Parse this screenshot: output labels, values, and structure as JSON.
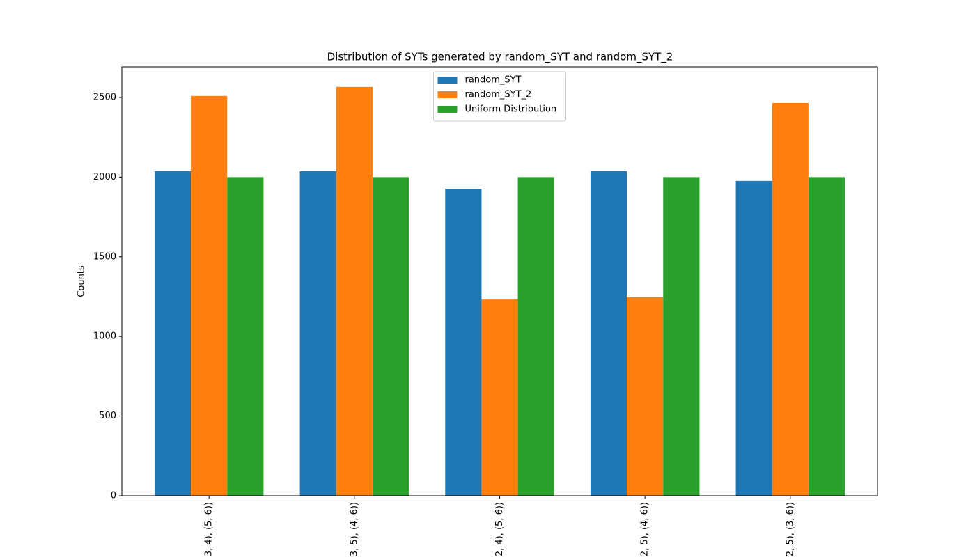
{
  "chart_data": {
    "type": "bar",
    "title": "Distribution of SYTs generated by random_SYT and random_SYT_2",
    "y_label": "Counts",
    "categories": [
      "3, 4), (5, 6))",
      "3, 5), (4, 6))",
      "2, 4), (5, 6))",
      "2, 5), (4, 6))",
      "2, 5), (3, 6))"
    ],
    "series": [
      {
        "name": "random_SYT",
        "color": "#1f77b4",
        "values": [
          2037,
          2037,
          1927,
          2037,
          1976
        ]
      },
      {
        "name": "random_SYT_2",
        "color": "#ff7f0e",
        "values": [
          2509,
          2566,
          1232,
          1246,
          2465
        ]
      },
      {
        "name": "Uniform Distribution",
        "color": "#2ca02c",
        "values": [
          2000,
          2000,
          2000,
          2000,
          2000
        ]
      }
    ],
    "ylim": [
      0,
      2692
    ],
    "yticks": [
      0,
      500,
      1000,
      1500,
      2000,
      2500
    ],
    "legend": "upper center",
    "grid": false
  }
}
